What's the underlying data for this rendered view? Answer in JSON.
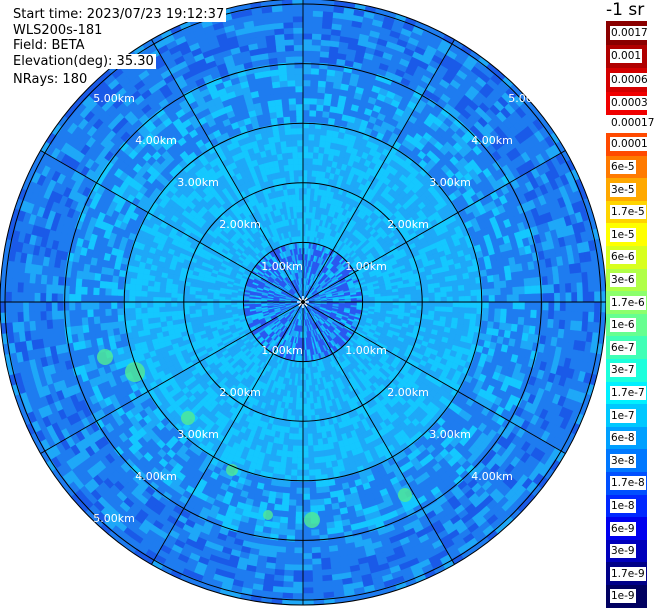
{
  "chart_data": {
    "type": "heatmap",
    "subtype": "polar-ppi-scan",
    "info": {
      "start_time": "Start time: 2023/07/23 19:12:37",
      "instrument": "WLS200s-181",
      "field": "Field: BETA",
      "elevation": "Elevation(deg): 35.30",
      "nrays": "NRays: 180"
    },
    "unit_label": "-1 sr",
    "range_rings_km": [
      1,
      2,
      3,
      4,
      5
    ],
    "range_labels": {
      "ring1": "1.00km",
      "ring2": "2.00km",
      "ring3": "3.00km",
      "ring4": "4.00km",
      "ring5": "5.00km"
    },
    "spokes_deg": [
      0,
      30,
      60,
      90,
      120,
      150,
      180,
      210,
      240,
      270,
      300,
      330
    ],
    "colorbar": {
      "scale": "log",
      "upper": [
        {
          "label": "0.0017",
          "color": "#8a0000"
        },
        {
          "label": "0.001",
          "color": "#b00000"
        },
        {
          "label": "0.0006",
          "color": "#d40000"
        },
        {
          "label": "0.0003",
          "color": "#f00000"
        }
      ],
      "upper_boundary_label": "0.00017",
      "lower": [
        {
          "label": "0.0001",
          "color": "#ff4a00"
        },
        {
          "label": "6e-5",
          "color": "#ff7a00"
        },
        {
          "label": "3e-5",
          "color": "#ffa800"
        },
        {
          "label": "1.7e-5",
          "color": "#ffd400"
        },
        {
          "label": "1e-5",
          "color": "#ffff00"
        },
        {
          "label": "6e-6",
          "color": "#d8ff1e"
        },
        {
          "label": "3e-6",
          "color": "#b0ff48"
        },
        {
          "label": "1.7e-6",
          "color": "#8cff6c"
        },
        {
          "label": "1e-6",
          "color": "#66ff90"
        },
        {
          "label": "6e-7",
          "color": "#40ffb6"
        },
        {
          "label": "3e-7",
          "color": "#1cffdc"
        },
        {
          "label": "1.7e-7",
          "color": "#00f0ff"
        },
        {
          "label": "1e-7",
          "color": "#00c8ff"
        },
        {
          "label": "6e-8",
          "color": "#00a0ff"
        },
        {
          "label": "3e-8",
          "color": "#0078ff"
        },
        {
          "label": "1.7e-8",
          "color": "#0050ff"
        },
        {
          "label": "1e-8",
          "color": "#0028ff"
        },
        {
          "label": "6e-9",
          "color": "#0000ee"
        },
        {
          "label": "3e-9",
          "color": "#0000bb"
        },
        {
          "label": "1.7e-9",
          "color": "#000088"
        },
        {
          "label": "1e-9",
          "color": "#000060"
        }
      ]
    },
    "field_colors": {
      "inner_dark": "#2a58f0",
      "inner_bright": "#14c8ff",
      "mid": "#1ea8f8",
      "outer": "#1e7cf0",
      "outer_dark": "#1a5ae8",
      "hotspot": "#4ee89a"
    }
  }
}
